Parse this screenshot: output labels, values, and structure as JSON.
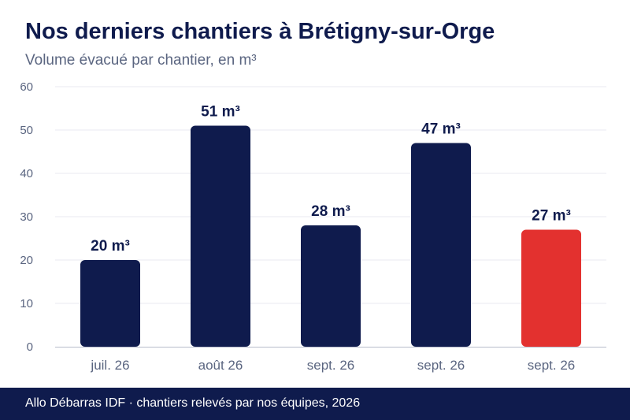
{
  "title": "Nos derniers chantiers à Brétigny-sur-Orge",
  "subtitle": "Volume évacué par chantier, en m³",
  "footer": "Allo Débarras IDF · chantiers relevés par nos équipes, 2026",
  "colors": {
    "primary": "#0f1b4d",
    "highlight": "#e3312f",
    "grid": "#e8eaf0",
    "axis_text": "#5a6580"
  },
  "chart_data": {
    "type": "bar",
    "categories": [
      "juil. 26",
      "août 26",
      "sept. 26",
      "sept. 26",
      "sept. 26"
    ],
    "values": [
      20,
      51,
      28,
      47,
      27
    ],
    "data_labels": [
      "20 m³",
      "51 m³",
      "28 m³",
      "47 m³",
      "27 m³"
    ],
    "highlight_index": 4,
    "ylim": [
      0,
      60
    ],
    "yticks": [
      0,
      10,
      20,
      30,
      40,
      50,
      60
    ],
    "grid": true,
    "xlabel": "",
    "ylabel": ""
  }
}
